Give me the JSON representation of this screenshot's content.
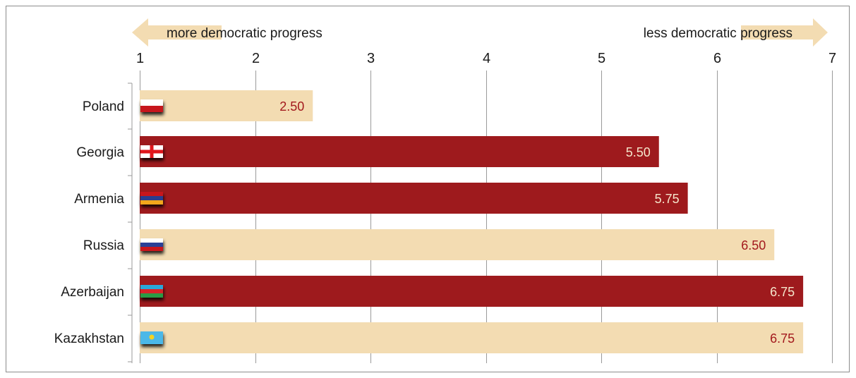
{
  "chart_data": {
    "type": "bar",
    "orientation": "horizontal",
    "categories": [
      "Poland",
      "Georgia",
      "Armenia",
      "Russia",
      "Azerbaijan",
      "Kazakhstan"
    ],
    "values": [
      2.5,
      5.5,
      5.75,
      6.5,
      6.75,
      6.75
    ],
    "value_labels": [
      "2.50",
      "5.50",
      "5.75",
      "6.50",
      "6.75",
      "6.75"
    ],
    "xlim": [
      1,
      7
    ],
    "xticks": [
      "1",
      "2",
      "3",
      "4",
      "5",
      "6",
      "7"
    ],
    "grid": true,
    "axis_position": "top",
    "left_direction_label": "more democratic progress",
    "right_direction_label": "less democratic progress",
    "flags": [
      "poland-flag",
      "georgia-flag",
      "armenia-flag",
      "russia-flag",
      "azerbaijan-flag",
      "kazakhstan-flag"
    ],
    "bar_colors": [
      "#f3dcb2",
      "#9e1a1d",
      "#9e1a1d",
      "#f3dcb2",
      "#9e1a1d",
      "#f3dcb2"
    ],
    "label_colors": [
      "#a3191d",
      "#f5e6cc",
      "#f5e6cc",
      "#a3191d",
      "#f5e6cc",
      "#a3191d"
    ]
  },
  "colors": {
    "arrow": "#f3dcb2",
    "dark_bar": "#9e1a1d",
    "light_bar": "#f3dcb2",
    "grid": "#9a9a9a"
  }
}
